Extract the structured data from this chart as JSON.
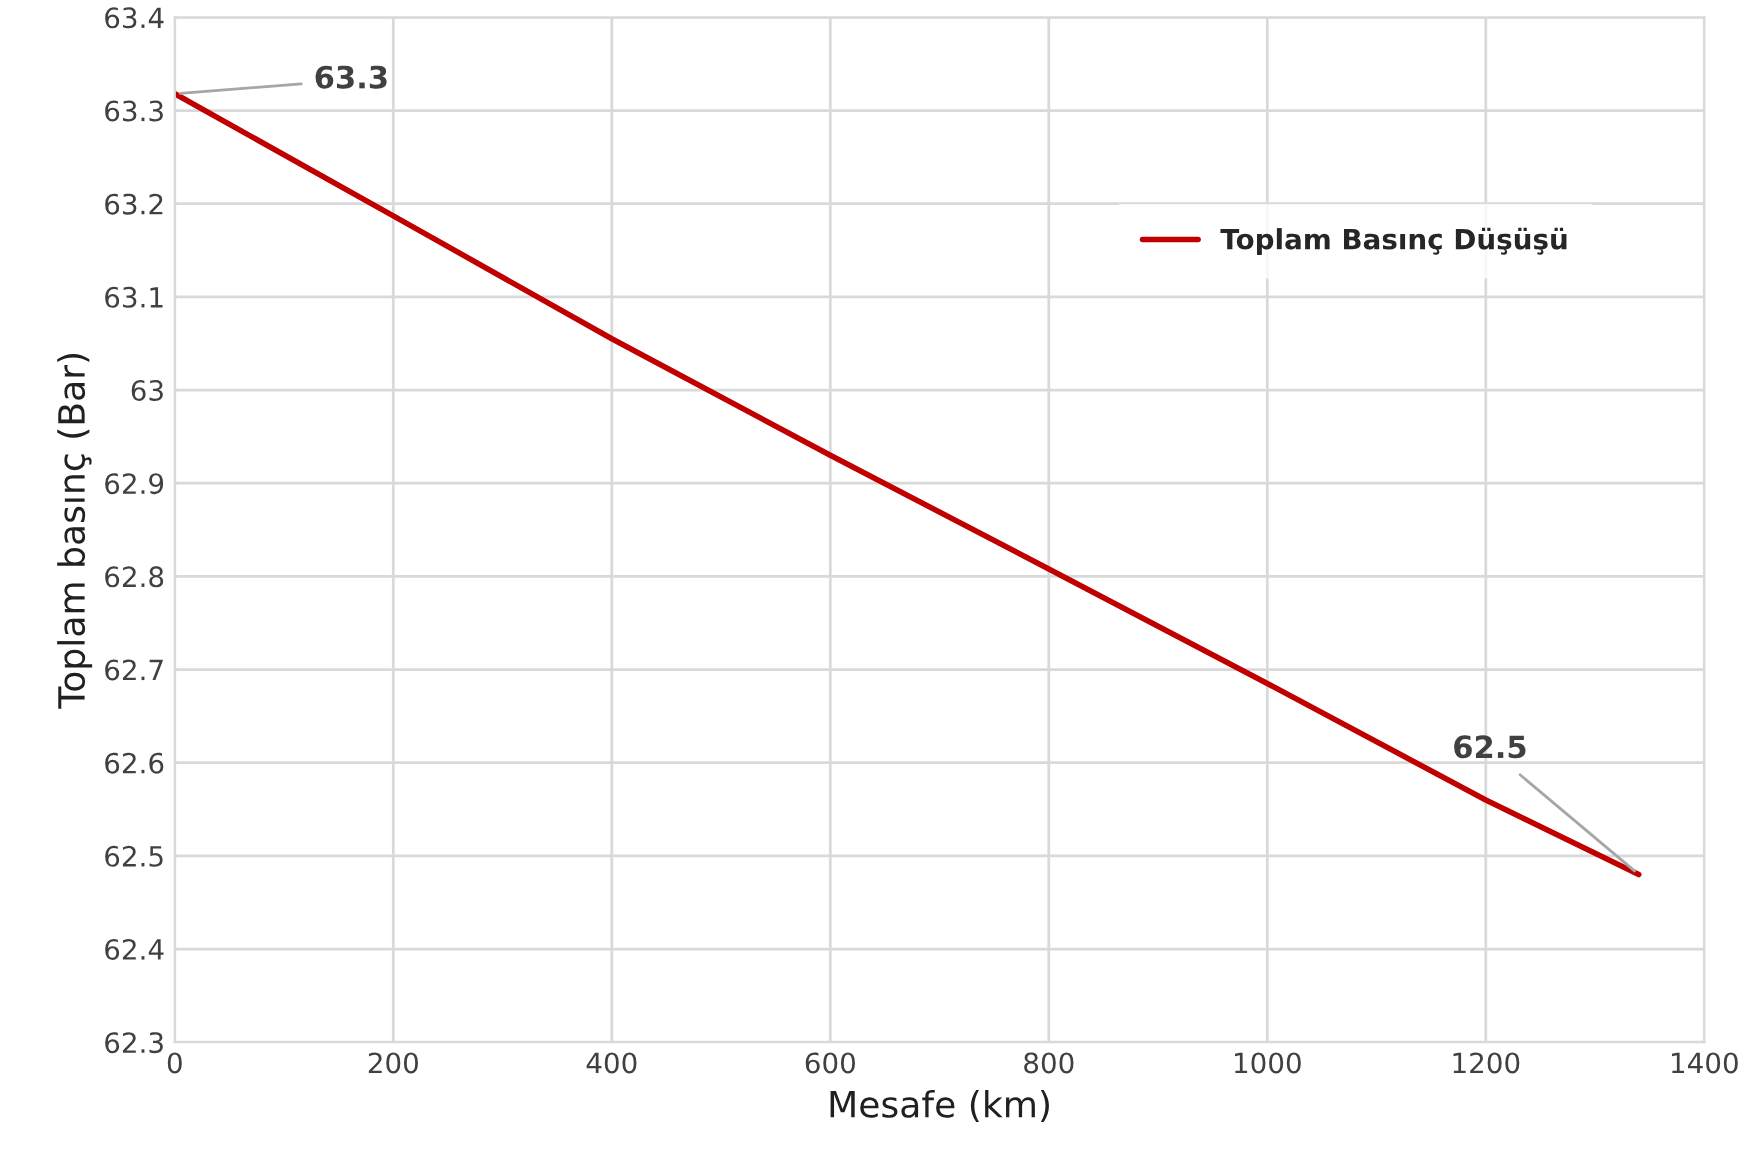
{
  "chart_data": {
    "type": "line",
    "xlabel": "Mesafe (km)",
    "ylabel": "Toplam basınç (Bar)",
    "x": [
      0,
      200,
      400,
      600,
      800,
      1000,
      1200,
      1340
    ],
    "series": [
      {
        "name": "Toplam Basınç Düşüşü",
        "color": "#c00000",
        "values": [
          63.318,
          63.187,
          63.055,
          62.93,
          62.808,
          62.685,
          62.56,
          62.48
        ]
      }
    ],
    "annotations": [
      {
        "text": "63.3",
        "x": 0,
        "y": 63.318
      },
      {
        "text": "62.5",
        "x": 1340,
        "y": 62.48
      }
    ],
    "xlim": [
      0,
      1400
    ],
    "xticks": [
      0,
      200,
      400,
      600,
      800,
      1000,
      1200,
      1400
    ],
    "ylim": [
      62.3,
      63.4
    ],
    "yticks": [
      62.3,
      62.4,
      62.5,
      62.6,
      62.7,
      62.8,
      62.9,
      63,
      63.1,
      63.2,
      63.3,
      63.4
    ],
    "grid": true,
    "legend": "top right",
    "marker": "none",
    "line_style": "solid"
  }
}
